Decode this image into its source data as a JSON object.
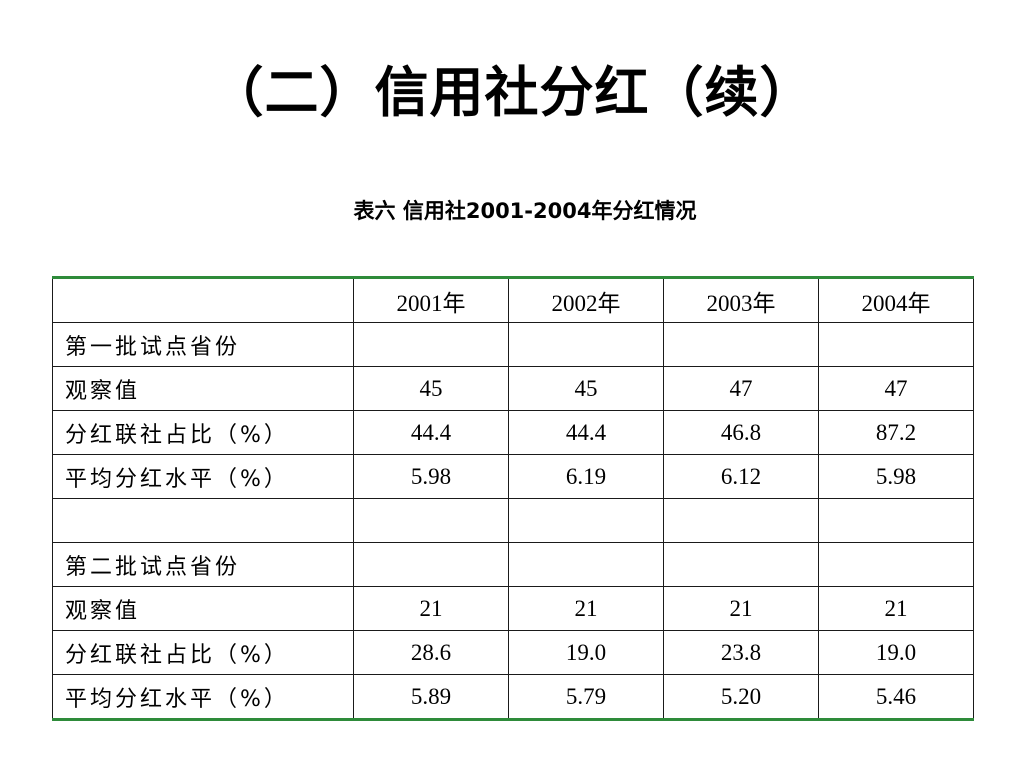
{
  "slide": {
    "title": "（二）信用社分红（续）",
    "caption": "表六  信用社2001-2004年分红情况"
  },
  "table": {
    "header": [
      "",
      "2001年",
      "2002年",
      "2003年",
      "2004年"
    ],
    "rows": [
      [
        "第一批试点省份",
        "",
        "",
        "",
        ""
      ],
      [
        "观察值",
        "45",
        "45",
        "47",
        "47"
      ],
      [
        "分红联社占比（%）",
        "44.4",
        "44.4",
        "46.8",
        "87.2"
      ],
      [
        "平均分红水平（%）",
        "5.98",
        "6.19",
        "6.12",
        "5.98"
      ],
      [
        "",
        "",
        "",
        "",
        ""
      ],
      [
        "第二批试点省份",
        "",
        "",
        "",
        ""
      ],
      [
        "观察值",
        "21",
        "21",
        "21",
        "21"
      ],
      [
        "分红联社占比（%）",
        "28.6",
        "19.0",
        "23.8",
        "19.0"
      ],
      [
        "平均分红水平（%）",
        "5.89",
        "5.79",
        "5.20",
        "5.46"
      ]
    ]
  },
  "colors": {
    "table_rule": "#2e8b3a",
    "grid_line": "#1a1a1a",
    "background": "#ffffff"
  }
}
